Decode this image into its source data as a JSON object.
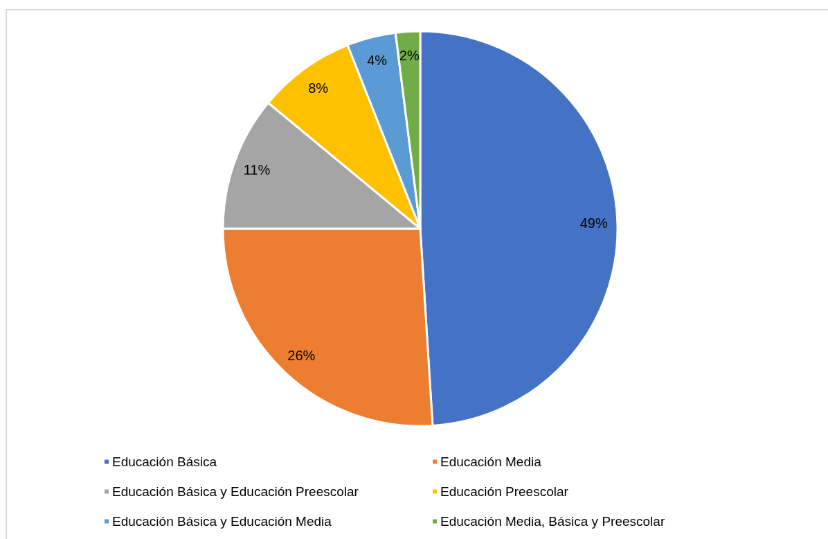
{
  "chart_data": {
    "type": "pie",
    "categories": [
      "Educación Básica",
      "Educación Media",
      "Educación Básica y Educación Preescolar",
      "Educación Preescolar",
      "Educación Básica y Educación Media",
      "Educación Media, Básica y Preescolar"
    ],
    "values": [
      49,
      26,
      11,
      8,
      4,
      2
    ],
    "value_labels": [
      "49%",
      "26%",
      "11%",
      "8%",
      "4%",
      "2%"
    ],
    "colors": [
      "#4472c4",
      "#ed7d31",
      "#a5a5a5",
      "#ffc000",
      "#5b9bd5",
      "#70ad47"
    ],
    "legend": "bottom"
  }
}
